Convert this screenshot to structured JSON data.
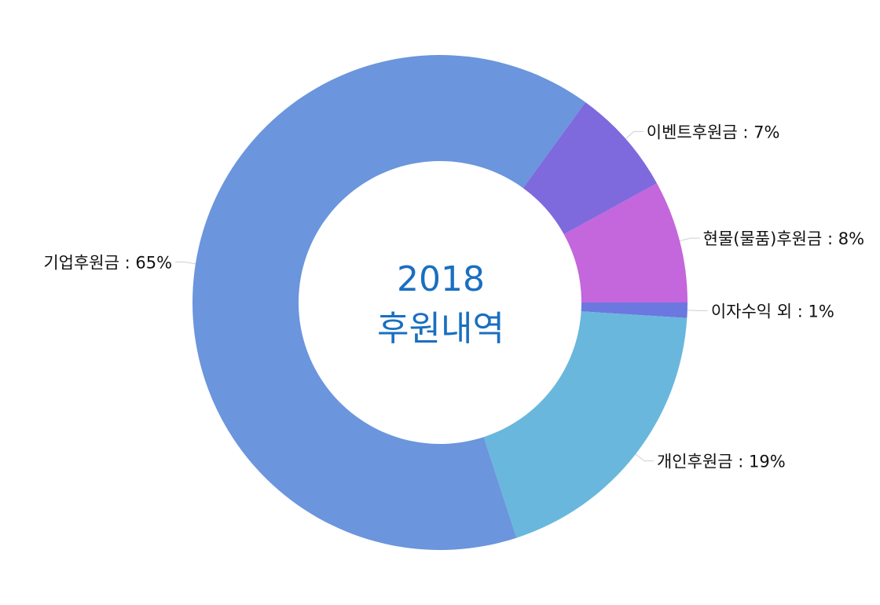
{
  "chart_data": {
    "type": "pie",
    "donut": true,
    "center_label": {
      "line1": "2018",
      "line2": "후원내역",
      "color": "#1a6fc0"
    },
    "slices": [
      {
        "label": "이자수익 외 : 1%",
        "name": "이자수익 외",
        "value": 1,
        "color": "#6b78e0"
      },
      {
        "label": "개인후원금 : 19%",
        "name": "개인후원금",
        "value": 19,
        "color": "#69b7dd"
      },
      {
        "label": "기업후원금 : 65%",
        "name": "기업후원금",
        "value": 65,
        "color": "#6b95dd"
      },
      {
        "label": "이벤트후원금 : 7%",
        "name": "이벤트후원금",
        "value": 7,
        "color": "#7e6adc"
      },
      {
        "label": "현물(물품)후원금 : 8%",
        "name": "현물(물품)후원금",
        "value": 8,
        "color": "#c466dc"
      }
    ],
    "start_angle_deg": 0,
    "direction": "clockwise-from-east",
    "legend": "none"
  }
}
